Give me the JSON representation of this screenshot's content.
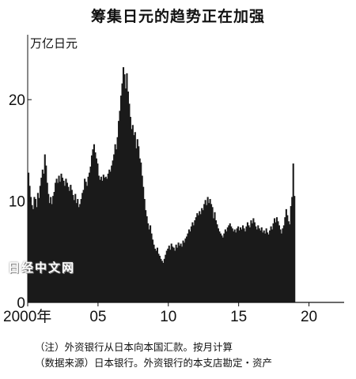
{
  "chart_data": {
    "type": "area",
    "title": "筹集日元的趋势正在加强",
    "ylabel": "万亿日元",
    "xlabel": "",
    "ylim": [
      0,
      25
    ],
    "yticks": [
      0,
      10,
      20
    ],
    "xticks": [
      {
        "value": 2000,
        "label": "2000年"
      },
      {
        "value": 2005,
        "label": "05"
      },
      {
        "value": 2010,
        "label": "10"
      },
      {
        "value": 2015,
        "label": "15"
      },
      {
        "value": 2020,
        "label": "20"
      }
    ],
    "xlim": [
      2000,
      2022.5
    ],
    "grid": false,
    "color": "#1a1a1a",
    "x_start": 2000.0,
    "step_years": 0.0833,
    "values": [
      12.8,
      11.5,
      10.4,
      9.6,
      9.2,
      10.4,
      10.2,
      9.4,
      10.8,
      10.3,
      11.5,
      12.3,
      13.1,
      12.7,
      14.6,
      13.5,
      11.8,
      10.7,
      9.8,
      10.4,
      9.7,
      10.5,
      10.9,
      11.8,
      12.2,
      11.8,
      12.5,
      11.9,
      12.7,
      12.3,
      12.0,
      11.5,
      12.2,
      11.8,
      11.4,
      11.0,
      11.6,
      11.1,
      10.6,
      10.1,
      10.7,
      9.8,
      10.2,
      9.4,
      9.7,
      10.2,
      10.8,
      11.1,
      12.2,
      11.9,
      11.5,
      12.4,
      12.8,
      13.4,
      14.5,
      15.1,
      15.6,
      14.8,
      14.2,
      13.7,
      12.5,
      12.1,
      12.4,
      12.0,
      12.6,
      12.3,
      12.4,
      12.2,
      12.7,
      13.1,
      12.9,
      13.5,
      14.0,
      14.6,
      15.6,
      15.1,
      16.3,
      17.9,
      18.9,
      20.4,
      21.6,
      23.2,
      22.5,
      21.1,
      22.6,
      20.8,
      19.6,
      18.3,
      17.1,
      17.5,
      16.5,
      16.8,
      15.2,
      16.1,
      15.4,
      14.2,
      13.8,
      12.5,
      11.4,
      10.2,
      9.1,
      8.5,
      7.8,
      7.2,
      7.6,
      6.8,
      6.2,
      5.7,
      5.3,
      5.1,
      5.4,
      4.8,
      4.6,
      4.3,
      4.1,
      3.9,
      4.3,
      4.7,
      5.1,
      5.3,
      5.6,
      5.2,
      5.8,
      5.5,
      5.4,
      5.1,
      5.7,
      5.4,
      5.9,
      5.6,
      5.8,
      5.5,
      6.1,
      5.9,
      6.3,
      6.5,
      6.8,
      7.2,
      7.0,
      7.5,
      7.9,
      7.6,
      8.1,
      8.4,
      8.8,
      8.6,
      9.0,
      8.7,
      9.3,
      9.1,
      9.7,
      10.1,
      9.6,
      10.4,
      9.8,
      10.2,
      9.7,
      9.4,
      8.3,
      8.9,
      8.1,
      7.7,
      7.3,
      7.0,
      6.8,
      6.6,
      6.4,
      6.8,
      7.2,
      7.0,
      7.4,
      7.6,
      7.8,
      7.5,
      7.3,
      7.0,
      7.2,
      6.9,
      7.3,
      7.5,
      7.1,
      7.4,
      7.2,
      7.6,
      7.3,
      7.0,
      7.5,
      7.9,
      7.6,
      7.4,
      8.1,
      7.8,
      8.3,
      7.9,
      7.5,
      7.2,
      7.6,
      7.3,
      7.1,
      7.4,
      6.9,
      7.1,
      6.8,
      7.3,
      6.9,
      6.7,
      7.1,
      7.5,
      7.2,
      7.8,
      8.3,
      7.9,
      8.4,
      8.0,
      7.6,
      7.2,
      6.8,
      7.3,
      7.6,
      8.4,
      9.2,
      8.6,
      8.0,
      7.7,
      9.5,
      10.4,
      13.7,
      10.5
    ]
  },
  "watermark": "日经中文网",
  "notes": [
    "（注）外资银行从日本向本国汇款。按月计算",
    "（数据来源）日本银行。外资银行的本支店勘定・资产"
  ]
}
